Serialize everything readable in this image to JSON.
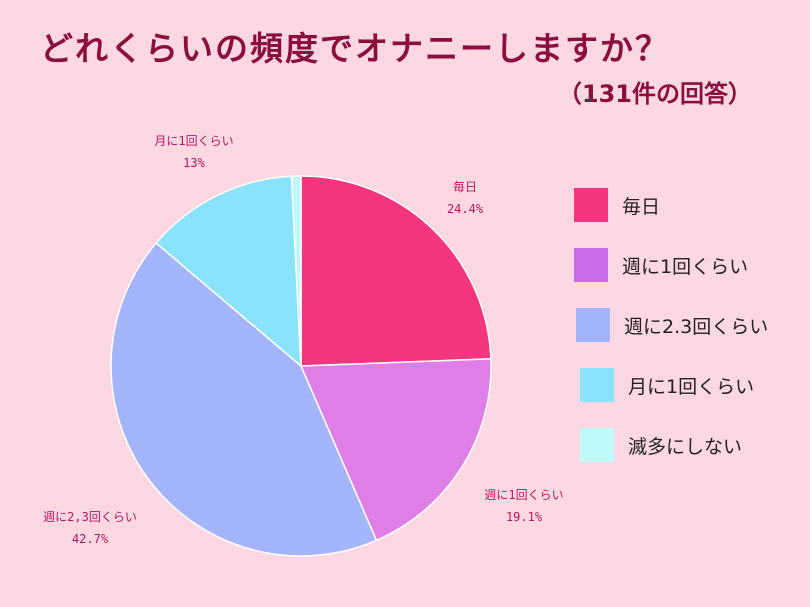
{
  "title": "どれくらいの頻度でオナニーしますか？",
  "subtitle": "（131件の回答）",
  "chart_data": {
    "type": "pie",
    "slices": [
      {
        "label": "毎日",
        "value": 24.4,
        "value_label": "24.4%",
        "color": "#f5357f"
      },
      {
        "label": "週に1回くらい",
        "value": 19.1,
        "value_label": "19.1%",
        "color": "#df7ee6"
      },
      {
        "label": "週に2,3回くらい",
        "value": 42.7,
        "value_label": "42.7%",
        "color": "#a5b5fb"
      },
      {
        "label": "月に1回くらい",
        "value": 13.0,
        "value_label": "13%",
        "color": "#8ae3fb"
      },
      {
        "label": "滅多にしない",
        "value": 0.8,
        "value_label": "",
        "color": "#bff9fa"
      }
    ],
    "legend": {
      "position": "right",
      "items": [
        {
          "label": "毎日",
          "color": "#f5357f"
        },
        {
          "label": "週に1回くらい",
          "color": "#c96be8"
        },
        {
          "label": "週に2.3回くらい",
          "color": "#a5b5fb"
        },
        {
          "label": "月に1回くらい",
          "color": "#8ae3fb"
        },
        {
          "label": "滅多にしない",
          "color": "#bff9fa"
        }
      ]
    }
  },
  "colors": {
    "background": "#fdd7e2",
    "title": "#8a0f3d",
    "slice_label": "#b01a5a"
  }
}
